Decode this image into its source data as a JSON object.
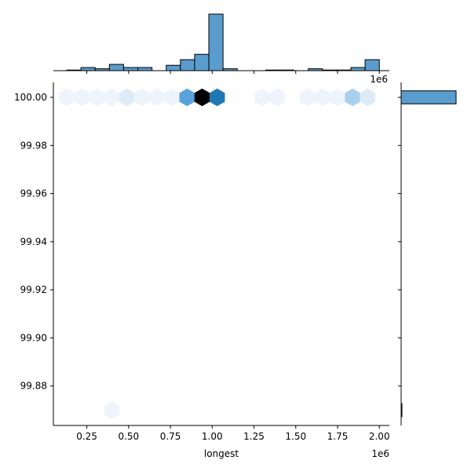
{
  "chart_data": {
    "type": "hexbin",
    "subtype": "jointplot",
    "x_label": "longest",
    "y_label": "",
    "x_offset_label": "1e6",
    "x_ticks": [
      0.25,
      0.5,
      0.75,
      1.0,
      1.25,
      1.5,
      1.75,
      2.0
    ],
    "x_tick_labels": [
      "0.25",
      "0.50",
      "0.75",
      "1.00",
      "1.25",
      "1.50",
      "1.75",
      "2.00"
    ],
    "y_ticks": [
      99.88,
      99.9,
      99.92,
      99.94,
      99.96,
      99.98,
      100.0
    ],
    "y_tick_labels": [
      "99.88",
      "99.90",
      "99.92",
      "99.94",
      "99.96",
      "99.98",
      "100.00"
    ],
    "x_range": [
      0.05,
      2.06
    ],
    "y_range": [
      99.8636,
      100.0062
    ],
    "color_scale": {
      "low": "#eef4fb",
      "mid": "#59a3dd",
      "high_mid": "#1f77b4",
      "high": "#000000"
    },
    "hex_cells": [
      {
        "x": 0.13,
        "y": 100.0,
        "count": 1
      },
      {
        "x": 0.22,
        "y": 100.0,
        "count": 1
      },
      {
        "x": 0.31,
        "y": 100.0,
        "count": 1
      },
      {
        "x": 0.4,
        "y": 100.0,
        "count": 1
      },
      {
        "x": 0.49,
        "y": 100.0,
        "count": 2
      },
      {
        "x": 0.58,
        "y": 100.0,
        "count": 1
      },
      {
        "x": 0.67,
        "y": 100.0,
        "count": 1
      },
      {
        "x": 0.76,
        "y": 100.0,
        "count": 1
      },
      {
        "x": 0.85,
        "y": 100.0,
        "count": 7
      },
      {
        "x": 0.94,
        "y": 100.0,
        "count": 12
      },
      {
        "x": 1.03,
        "y": 100.0,
        "count": 10
      },
      {
        "x": 1.3,
        "y": 100.0,
        "count": 1
      },
      {
        "x": 1.39,
        "y": 100.0,
        "count": 1
      },
      {
        "x": 1.57,
        "y": 100.0,
        "count": 1
      },
      {
        "x": 1.66,
        "y": 100.0,
        "count": 1
      },
      {
        "x": 1.75,
        "y": 100.0,
        "count": 1
      },
      {
        "x": 1.84,
        "y": 100.0,
        "count": 4
      },
      {
        "x": 1.93,
        "y": 100.0,
        "count": 2
      },
      {
        "x": 0.4,
        "y": 99.87,
        "count": 1
      }
    ],
    "top_histogram": {
      "bins": [
        {
          "x0": 0.13,
          "x1": 0.215,
          "count": 0.2
        },
        {
          "x0": 0.215,
          "x1": 0.3,
          "count": 1
        },
        {
          "x0": 0.3,
          "x1": 0.385,
          "count": 0.6
        },
        {
          "x0": 0.385,
          "x1": 0.47,
          "count": 2
        },
        {
          "x0": 0.47,
          "x1": 0.555,
          "count": 1
        },
        {
          "x0": 0.555,
          "x1": 0.64,
          "count": 1
        },
        {
          "x0": 0.64,
          "x1": 0.725,
          "count": 0
        },
        {
          "x0": 0.725,
          "x1": 0.81,
          "count": 1.7
        },
        {
          "x0": 0.81,
          "x1": 0.895,
          "count": 3.5
        },
        {
          "x0": 0.895,
          "x1": 0.98,
          "count": 5.2
        },
        {
          "x0": 0.98,
          "x1": 1.065,
          "count": 18
        },
        {
          "x0": 1.065,
          "x1": 1.15,
          "count": 0.6
        },
        {
          "x0": 1.15,
          "x1": 1.235,
          "count": 0
        },
        {
          "x0": 1.235,
          "x1": 1.32,
          "count": 0
        },
        {
          "x0": 1.32,
          "x1": 1.405,
          "count": 0.2
        },
        {
          "x0": 1.405,
          "x1": 1.49,
          "count": 0.2
        },
        {
          "x0": 1.49,
          "x1": 1.575,
          "count": 0
        },
        {
          "x0": 1.575,
          "x1": 1.66,
          "count": 0.6
        },
        {
          "x0": 1.66,
          "x1": 1.745,
          "count": 0.2
        },
        {
          "x0": 1.745,
          "x1": 1.83,
          "count": 0.2
        },
        {
          "x0": 1.83,
          "x1": 1.915,
          "count": 1
        },
        {
          "x0": 1.915,
          "x1": 2.0,
          "count": 3.5
        }
      ],
      "max_count": 18
    },
    "right_histogram": {
      "bins": [
        {
          "y0": 99.9973,
          "y1": 100.0027,
          "count": 68
        },
        {
          "y0": 99.8673,
          "y1": 99.8727,
          "count": 1
        }
      ],
      "max_count": 68
    }
  }
}
